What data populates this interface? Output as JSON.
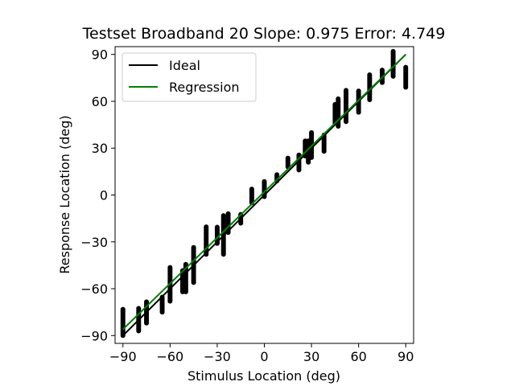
{
  "chart_data": {
    "type": "scatter",
    "title": "Testset Broadband 20 Slope: 0.975 Error: 4.749",
    "xlabel": "Stimulus Location (deg)",
    "ylabel": "Response Location (deg)",
    "xlim": [
      -95,
      95
    ],
    "ylim": [
      -95,
      95
    ],
    "xticks": [
      -90,
      -60,
      -30,
      0,
      30,
      60,
      90
    ],
    "yticks": [
      -90,
      -60,
      -30,
      0,
      30,
      60,
      90
    ],
    "xtick_labels": [
      "−90",
      "−60",
      "−30",
      "0",
      "30",
      "60",
      "90"
    ],
    "ytick_labels": [
      "−90",
      "−60",
      "−30",
      "0",
      "30",
      "60",
      "90"
    ],
    "grid": false,
    "legend_position": "top-left",
    "legend": [
      {
        "label": "Ideal",
        "color": "#000000"
      },
      {
        "label": "Regression",
        "color": "#008000"
      }
    ],
    "lines": [
      {
        "name": "Ideal",
        "color": "#000000",
        "x": [
          -90,
          90
        ],
        "y": [
          -90,
          90
        ]
      },
      {
        "name": "Regression",
        "color": "#008000",
        "x": [
          -90,
          90
        ],
        "y": [
          -86,
          90
        ]
      }
    ],
    "marker_color": "#000000",
    "scatter_columns": [
      {
        "x": -90,
        "ymin": -90,
        "ymax": -73
      },
      {
        "x": -80,
        "ymin": -87,
        "ymax": -72
      },
      {
        "x": -75,
        "ymin": -82,
        "ymax": -68
      },
      {
        "x": -65,
        "ymin": -75,
        "ymax": -65
      },
      {
        "x": -60,
        "ymin": -68,
        "ymax": -46
      },
      {
        "x": -52,
        "ymin": -62,
        "ymax": -48
      },
      {
        "x": -50,
        "ymin": -62,
        "ymax": -44
      },
      {
        "x": -45,
        "ymin": -56,
        "ymax": -33
      },
      {
        "x": -37,
        "ymin": -38,
        "ymax": -20
      },
      {
        "x": -30,
        "ymin": -31,
        "ymax": -20
      },
      {
        "x": -26,
        "ymin": -38,
        "ymax": -13
      },
      {
        "x": -23,
        "ymin": -24,
        "ymax": -12
      },
      {
        "x": -15,
        "ymin": -18,
        "ymax": -12
      },
      {
        "x": -8,
        "ymin": -5,
        "ymax": 4
      },
      {
        "x": 0,
        "ymin": -1,
        "ymax": 9
      },
      {
        "x": 8,
        "ymin": 9,
        "ymax": 13
      },
      {
        "x": 15,
        "ymin": 18,
        "ymax": 24
      },
      {
        "x": 22,
        "ymin": 16,
        "ymax": 26
      },
      {
        "x": 26,
        "ymin": 25,
        "ymax": 35
      },
      {
        "x": 28,
        "ymin": 21,
        "ymax": 35
      },
      {
        "x": 30,
        "ymin": 24,
        "ymax": 40
      },
      {
        "x": 38,
        "ymin": 28,
        "ymax": 39
      },
      {
        "x": 45,
        "ymin": 46,
        "ymax": 58
      },
      {
        "x": 47,
        "ymin": 44,
        "ymax": 62
      },
      {
        "x": 52,
        "ymin": 47,
        "ymax": 67
      },
      {
        "x": 60,
        "ymin": 53,
        "ymax": 67
      },
      {
        "x": 67,
        "ymin": 61,
        "ymax": 77
      },
      {
        "x": 75,
        "ymin": 72,
        "ymax": 80
      },
      {
        "x": 82,
        "ymin": 76,
        "ymax": 92
      },
      {
        "x": 90,
        "ymin": 69,
        "ymax": 82
      }
    ]
  }
}
